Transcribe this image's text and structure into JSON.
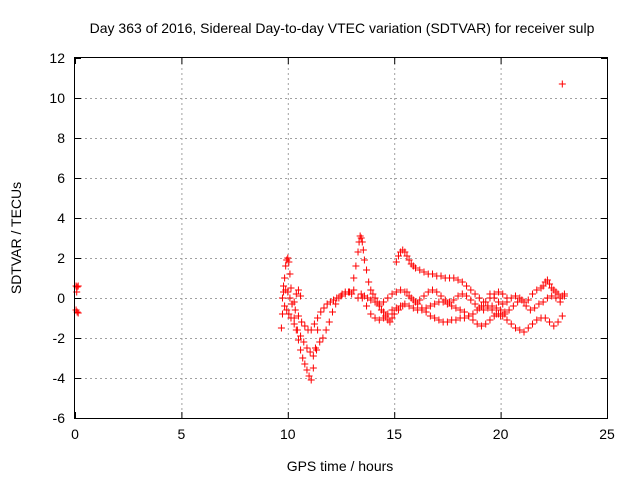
{
  "chart_data": {
    "type": "scatter",
    "title": "Day 363 of 2016, Sidereal Day-to-day VTEC variation (SDTVAR) for receiver sulp",
    "xlabel": "GPS time / hours",
    "ylabel": "SDTVAR / TECUs",
    "xlim": [
      0,
      25
    ],
    "ylim": [
      -6,
      12
    ],
    "xticks": [
      0,
      5,
      10,
      15,
      20,
      25
    ],
    "yticks": [
      -6,
      -4,
      -2,
      0,
      2,
      4,
      6,
      8,
      10,
      12
    ],
    "xtick_labels": [
      "0",
      "5",
      "10",
      "15",
      "20",
      "25"
    ],
    "ytick_labels": [
      "-6",
      "-4",
      "-2",
      "0",
      "2",
      "4",
      "6",
      "8",
      "10",
      "12"
    ],
    "grid": true,
    "marker": "plus",
    "color": "#ff0000",
    "series": [
      {
        "name": "SDTVAR",
        "points": [
          [
            0.05,
            0.6
          ],
          [
            0.1,
            0.55
          ],
          [
            0.15,
            0.6
          ],
          [
            0.08,
            0.3
          ],
          [
            0.05,
            -0.6
          ],
          [
            0.1,
            -0.7
          ],
          [
            0.15,
            -0.75
          ],
          [
            9.7,
            -1.5
          ],
          [
            9.75,
            -0.8
          ],
          [
            9.8,
            0.3
          ],
          [
            9.85,
            1.0
          ],
          [
            9.9,
            1.6
          ],
          [
            9.95,
            1.9
          ],
          [
            10.0,
            2.0
          ],
          [
            10.05,
            1.8
          ],
          [
            10.1,
            1.2
          ],
          [
            10.15,
            0.5
          ],
          [
            10.2,
            -0.3
          ],
          [
            10.3,
            -1.0
          ],
          [
            10.4,
            -1.6
          ],
          [
            10.5,
            -2.1
          ],
          [
            10.6,
            -2.6
          ],
          [
            10.7,
            -3.0
          ],
          [
            10.8,
            -3.3
          ],
          [
            10.9,
            -3.6
          ],
          [
            11.0,
            -3.9
          ],
          [
            11.1,
            -4.1
          ],
          [
            11.2,
            -3.5
          ],
          [
            11.3,
            -2.5
          ],
          [
            11.4,
            -1.6
          ],
          [
            9.75,
            0.0
          ],
          [
            9.85,
            -0.4
          ],
          [
            9.95,
            -0.6
          ],
          [
            10.05,
            -0.8
          ],
          [
            10.15,
            -1.0
          ],
          [
            10.3,
            -1.3
          ],
          [
            10.45,
            -1.6
          ],
          [
            10.6,
            -1.9
          ],
          [
            10.75,
            -2.2
          ],
          [
            10.9,
            -2.5
          ],
          [
            11.05,
            -2.7
          ],
          [
            11.2,
            -2.9
          ],
          [
            11.35,
            -2.6
          ],
          [
            11.5,
            -2.2
          ],
          [
            11.65,
            -2.0
          ],
          [
            11.8,
            -1.6
          ],
          [
            11.95,
            -1.2
          ],
          [
            12.1,
            -0.7
          ],
          [
            12.25,
            -0.3
          ],
          [
            12.4,
            0.0
          ],
          [
            12.55,
            0.2
          ],
          [
            12.7,
            0.3
          ],
          [
            12.85,
            0.3
          ],
          [
            13.0,
            0.2
          ],
          [
            9.8,
            0.6
          ],
          [
            9.9,
            0.4
          ],
          [
            10.0,
            0.3
          ],
          [
            10.1,
            0.0
          ],
          [
            10.2,
            -0.3
          ],
          [
            10.35,
            -0.6
          ],
          [
            10.5,
            -0.9
          ],
          [
            10.65,
            -1.2
          ],
          [
            10.8,
            -1.4
          ],
          [
            10.95,
            -1.6
          ],
          [
            11.1,
            -1.6
          ],
          [
            11.25,
            -1.3
          ],
          [
            11.4,
            -1.0
          ],
          [
            11.55,
            -0.7
          ],
          [
            11.7,
            -0.5
          ],
          [
            11.85,
            -0.3
          ],
          [
            12.0,
            -0.2
          ],
          [
            12.15,
            -0.1
          ],
          [
            12.3,
            0.0
          ],
          [
            12.5,
            0.1
          ],
          [
            12.7,
            0.2
          ],
          [
            12.9,
            0.3
          ],
          [
            13.1,
            0.4
          ],
          [
            10.3,
            -0.2
          ],
          [
            10.4,
            0.2
          ],
          [
            10.5,
            0.4
          ],
          [
            10.6,
            0.1
          ],
          [
            13.1,
            1.0
          ],
          [
            13.2,
            1.6
          ],
          [
            13.3,
            2.3
          ],
          [
            13.35,
            2.8
          ],
          [
            13.4,
            3.1
          ],
          [
            13.45,
            3.0
          ],
          [
            13.5,
            2.8
          ],
          [
            13.55,
            2.4
          ],
          [
            13.6,
            1.9
          ],
          [
            13.7,
            1.4
          ],
          [
            13.8,
            0.8
          ],
          [
            13.9,
            0.4
          ],
          [
            14.0,
            0.2
          ],
          [
            14.1,
            0.0
          ],
          [
            14.2,
            -0.2
          ],
          [
            14.3,
            -0.4
          ],
          [
            14.4,
            -0.6
          ],
          [
            14.5,
            -0.7
          ],
          [
            14.6,
            -0.9
          ],
          [
            14.7,
            -1.1
          ],
          [
            14.8,
            -1.2
          ],
          [
            14.9,
            -1.0
          ],
          [
            15.0,
            -0.8
          ],
          [
            15.2,
            -0.6
          ],
          [
            15.4,
            -0.4
          ],
          [
            13.3,
            0.0
          ],
          [
            13.45,
            0.2
          ],
          [
            13.6,
            0.1
          ],
          [
            13.75,
            0.0
          ],
          [
            13.9,
            -0.1
          ],
          [
            14.1,
            -0.2
          ],
          [
            14.3,
            -0.3
          ],
          [
            14.5,
            -0.2
          ],
          [
            14.7,
            0.0
          ],
          [
            14.9,
            0.2
          ],
          [
            15.1,
            0.3
          ],
          [
            15.3,
            0.4
          ],
          [
            15.5,
            0.3
          ],
          [
            15.7,
            0.1
          ],
          [
            15.9,
            -0.1
          ],
          [
            16.1,
            -0.3
          ],
          [
            16.3,
            -0.5
          ],
          [
            16.5,
            -0.7
          ],
          [
            16.7,
            -0.9
          ],
          [
            16.9,
            -1.0
          ],
          [
            17.1,
            -1.1
          ],
          [
            17.3,
            -1.2
          ],
          [
            17.5,
            -1.2
          ],
          [
            17.7,
            -1.1
          ],
          [
            17.9,
            -1.1
          ],
          [
            18.1,
            -1.0
          ],
          [
            18.3,
            -1.0
          ],
          [
            18.5,
            -0.9
          ],
          [
            18.7,
            -0.8
          ],
          [
            18.9,
            -0.6
          ],
          [
            19.1,
            -0.4
          ],
          [
            19.3,
            -0.2
          ],
          [
            19.5,
            0.0
          ],
          [
            19.7,
            0.2
          ],
          [
            19.9,
            0.3
          ],
          [
            20.1,
            0.2
          ],
          [
            20.3,
            0.0
          ],
          [
            13.5,
            0.0
          ],
          [
            13.7,
            -0.4
          ],
          [
            13.9,
            -0.8
          ],
          [
            14.1,
            -1.0
          ],
          [
            14.3,
            -1.1
          ],
          [
            14.5,
            -1.0
          ],
          [
            14.7,
            -0.8
          ],
          [
            14.9,
            -0.6
          ],
          [
            15.1,
            -0.5
          ],
          [
            15.3,
            -0.4
          ],
          [
            15.5,
            -0.3
          ],
          [
            15.7,
            -0.4
          ],
          [
            15.9,
            -0.5
          ],
          [
            16.1,
            -0.6
          ],
          [
            16.3,
            -0.6
          ],
          [
            16.5,
            -0.5
          ],
          [
            16.7,
            -0.4
          ],
          [
            16.9,
            -0.3
          ],
          [
            17.1,
            -0.2
          ],
          [
            17.3,
            -0.2
          ],
          [
            17.5,
            -0.3
          ],
          [
            17.7,
            -0.4
          ],
          [
            17.9,
            -0.5
          ],
          [
            18.1,
            -0.6
          ],
          [
            18.3,
            -0.7
          ],
          [
            18.5,
            -0.9
          ],
          [
            18.7,
            -1.1
          ],
          [
            18.9,
            -1.3
          ],
          [
            19.1,
            -1.4
          ],
          [
            19.3,
            -1.3
          ],
          [
            19.5,
            -1.1
          ],
          [
            19.7,
            -0.9
          ],
          [
            19.9,
            -0.8
          ],
          [
            20.1,
            -0.9
          ],
          [
            20.3,
            -1.1
          ],
          [
            20.5,
            -1.3
          ],
          [
            20.7,
            -1.5
          ],
          [
            20.9,
            -1.6
          ],
          [
            21.1,
            -1.7
          ],
          [
            21.3,
            -1.5
          ],
          [
            21.5,
            -1.3
          ],
          [
            21.7,
            -1.1
          ],
          [
            21.9,
            -1.0
          ],
          [
            22.1,
            -1.0
          ],
          [
            22.3,
            -1.2
          ],
          [
            22.5,
            -1.4
          ],
          [
            22.7,
            -1.2
          ],
          [
            22.9,
            -0.9
          ],
          [
            15.1,
            1.8
          ],
          [
            15.2,
            2.1
          ],
          [
            15.3,
            2.3
          ],
          [
            15.4,
            2.4
          ],
          [
            15.5,
            2.3
          ],
          [
            15.6,
            2.1
          ],
          [
            15.7,
            1.9
          ],
          [
            15.8,
            1.7
          ],
          [
            15.9,
            1.6
          ],
          [
            16.0,
            1.5
          ],
          [
            16.2,
            1.4
          ],
          [
            16.4,
            1.3
          ],
          [
            16.6,
            1.2
          ],
          [
            16.8,
            1.2
          ],
          [
            17.0,
            1.1
          ],
          [
            17.2,
            1.1
          ],
          [
            17.4,
            1.0
          ],
          [
            17.6,
            1.0
          ],
          [
            17.8,
            1.0
          ],
          [
            18.0,
            0.9
          ],
          [
            18.2,
            0.8
          ],
          [
            18.4,
            0.6
          ],
          [
            18.6,
            0.4
          ],
          [
            18.8,
            0.2
          ],
          [
            19.0,
            0.0
          ],
          [
            19.2,
            -0.2
          ],
          [
            19.4,
            -0.4
          ],
          [
            19.6,
            -0.6
          ],
          [
            19.8,
            -0.8
          ],
          [
            20.0,
            -0.9
          ],
          [
            20.2,
            -0.8
          ],
          [
            20.4,
            -0.6
          ],
          [
            20.6,
            -0.4
          ],
          [
            20.8,
            -0.2
          ],
          [
            21.0,
            -0.1
          ],
          [
            15.6,
            0.3
          ],
          [
            15.8,
            0.0
          ],
          [
            16.0,
            -0.2
          ],
          [
            16.2,
            -0.1
          ],
          [
            16.4,
            0.1
          ],
          [
            16.6,
            0.3
          ],
          [
            16.8,
            0.4
          ],
          [
            17.0,
            0.3
          ],
          [
            17.2,
            0.1
          ],
          [
            17.4,
            -0.1
          ],
          [
            17.6,
            -0.2
          ],
          [
            17.8,
            -0.1
          ],
          [
            18.0,
            0.1
          ],
          [
            18.2,
            0.2
          ],
          [
            18.4,
            0.1
          ],
          [
            18.6,
            -0.1
          ],
          [
            18.8,
            -0.3
          ],
          [
            19.0,
            -0.5
          ],
          [
            19.2,
            -0.6
          ],
          [
            19.4,
            -0.5
          ],
          [
            19.6,
            -0.4
          ],
          [
            19.8,
            -0.5
          ],
          [
            20.0,
            -0.6
          ],
          [
            20.2,
            -0.7
          ],
          [
            19.5,
            0.2
          ],
          [
            19.7,
            0.0
          ],
          [
            19.9,
            -0.2
          ],
          [
            20.1,
            -0.3
          ],
          [
            20.3,
            -0.2
          ],
          [
            20.5,
            0.0
          ],
          [
            20.7,
            0.1
          ],
          [
            20.9,
            0.0
          ],
          [
            21.1,
            -0.2
          ],
          [
            21.2,
            -0.4
          ],
          [
            21.3,
            -0.1
          ],
          [
            21.5,
            0.2
          ],
          [
            21.7,
            0.4
          ],
          [
            21.9,
            0.5
          ],
          [
            22.0,
            0.6
          ],
          [
            22.1,
            0.8
          ],
          [
            22.2,
            0.9
          ],
          [
            22.3,
            0.7
          ],
          [
            22.4,
            0.5
          ],
          [
            22.5,
            0.4
          ],
          [
            22.6,
            0.3
          ],
          [
            22.7,
            0.2
          ],
          [
            22.8,
            0.0
          ],
          [
            22.9,
            0.1
          ],
          [
            23.0,
            0.2
          ],
          [
            21.4,
            -0.6
          ],
          [
            21.6,
            -0.5
          ],
          [
            21.8,
            -0.3
          ],
          [
            22.0,
            -0.2
          ],
          [
            22.2,
            0.0
          ],
          [
            22.4,
            0.1
          ],
          [
            22.6,
            0.0
          ],
          [
            22.8,
            -0.2
          ],
          [
            23.0,
            0.1
          ],
          [
            22.9,
            10.7
          ]
        ]
      }
    ]
  }
}
